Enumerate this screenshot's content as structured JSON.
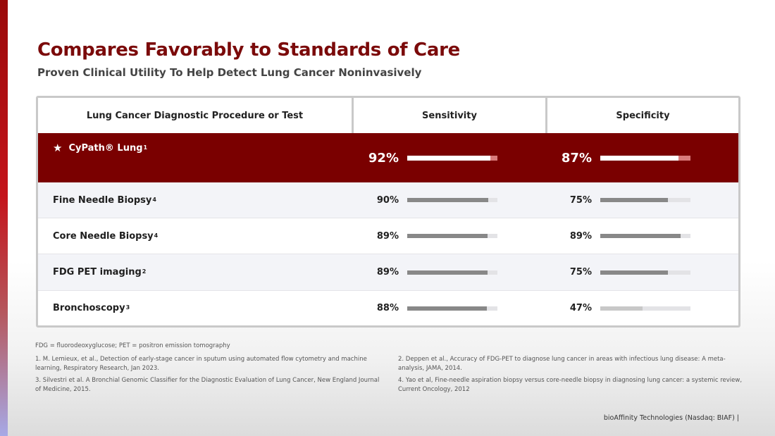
{
  "title": "Compares Favorably to Standards of Care",
  "subtitle": "Proven Clinical Utility To Help Detect Lung Cancer Noninvasively",
  "colors": {
    "brand": "#7a0000",
    "title": "#7b0a0a",
    "bar_track": "#e3e3e6",
    "bar_fill": "#888888"
  },
  "table": {
    "headers": [
      "Lung Cancer Diagnostic Procedure or Test",
      "Sensitivity",
      "Specificity"
    ],
    "rows": [
      {
        "name": "CyPath® Lung",
        "sup": "1",
        "icon": "star-icon",
        "sensitivity": "92%",
        "sensitivity_value": 92,
        "specificity": "87%",
        "specificity_value": 87
      },
      {
        "name": "Fine Needle Biopsy",
        "sup": "4",
        "sensitivity": "90%",
        "sensitivity_value": 90,
        "specificity": "75%",
        "specificity_value": 75
      },
      {
        "name": "Core Needle Biopsy",
        "sup": "4",
        "sensitivity": "89%",
        "sensitivity_value": 89,
        "specificity": "89%",
        "specificity_value": 89
      },
      {
        "name": "FDG PET imaging",
        "sup": "2",
        "sensitivity": "89%",
        "sensitivity_value": 89,
        "specificity": "75%",
        "specificity_value": 75
      },
      {
        "name": "Bronchoscopy",
        "sup": "3",
        "sensitivity": "88%",
        "sensitivity_value": 88,
        "specificity": "47%",
        "specificity_value": 47
      }
    ]
  },
  "notes": {
    "abbreviations": "FDG = fluorodeoxyglucose; PET = positron emission tomography",
    "ref1": "1. M. Lemieux, et al., Detection of early-stage cancer in sputum using automated flow cytometry and machine learning, Respiratory Research, Jan 2023.",
    "ref3": "3. Silvestri et al. A Bronchial Genomic Classifier for the Diagnostic Evaluation of Lung Cancer, New England Journal of Medicine, 2015.",
    "ref2": "2. Deppen et al., Accuracy of FDG-PET to diagnose lung cancer in areas with infectious lung disease: A meta-analysis, JAMA, 2014.",
    "ref4": "4. Yao et al, Fine-needle aspiration biopsy versus core-needle biopsy in diagnosing lung cancer: a systemic review, Current Oncology, 2012"
  },
  "footer": "bioAffinity Technologies (Nasdaq: BIAF) |"
}
